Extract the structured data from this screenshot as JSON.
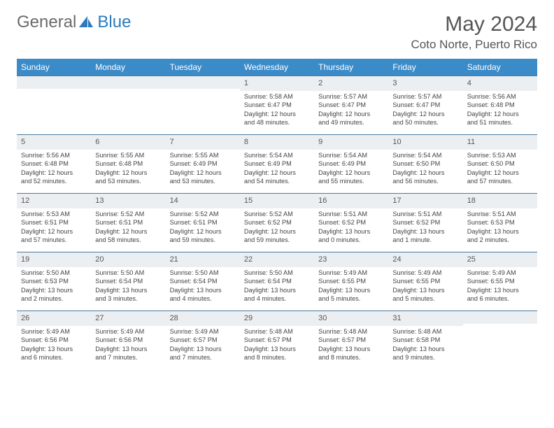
{
  "brand": {
    "general": "General",
    "blue": "Blue"
  },
  "title": "May 2024",
  "location": "Coto Norte, Puerto Rico",
  "colors": {
    "header_bg": "#3b8bc9",
    "daynum_bg": "#eceff1",
    "border": "#4a7a9e",
    "brand_blue": "#2b7bbd",
    "brand_gray": "#6b6b6b"
  },
  "weekdays": [
    "Sunday",
    "Monday",
    "Tuesday",
    "Wednesday",
    "Thursday",
    "Friday",
    "Saturday"
  ],
  "weeks": [
    [
      {
        "n": "",
        "lines": []
      },
      {
        "n": "",
        "lines": []
      },
      {
        "n": "",
        "lines": []
      },
      {
        "n": "1",
        "lines": [
          "Sunrise: 5:58 AM",
          "Sunset: 6:47 PM",
          "Daylight: 12 hours",
          "and 48 minutes."
        ]
      },
      {
        "n": "2",
        "lines": [
          "Sunrise: 5:57 AM",
          "Sunset: 6:47 PM",
          "Daylight: 12 hours",
          "and 49 minutes."
        ]
      },
      {
        "n": "3",
        "lines": [
          "Sunrise: 5:57 AM",
          "Sunset: 6:47 PM",
          "Daylight: 12 hours",
          "and 50 minutes."
        ]
      },
      {
        "n": "4",
        "lines": [
          "Sunrise: 5:56 AM",
          "Sunset: 6:48 PM",
          "Daylight: 12 hours",
          "and 51 minutes."
        ]
      }
    ],
    [
      {
        "n": "5",
        "lines": [
          "Sunrise: 5:56 AM",
          "Sunset: 6:48 PM",
          "Daylight: 12 hours",
          "and 52 minutes."
        ]
      },
      {
        "n": "6",
        "lines": [
          "Sunrise: 5:55 AM",
          "Sunset: 6:48 PM",
          "Daylight: 12 hours",
          "and 53 minutes."
        ]
      },
      {
        "n": "7",
        "lines": [
          "Sunrise: 5:55 AM",
          "Sunset: 6:49 PM",
          "Daylight: 12 hours",
          "and 53 minutes."
        ]
      },
      {
        "n": "8",
        "lines": [
          "Sunrise: 5:54 AM",
          "Sunset: 6:49 PM",
          "Daylight: 12 hours",
          "and 54 minutes."
        ]
      },
      {
        "n": "9",
        "lines": [
          "Sunrise: 5:54 AM",
          "Sunset: 6:49 PM",
          "Daylight: 12 hours",
          "and 55 minutes."
        ]
      },
      {
        "n": "10",
        "lines": [
          "Sunrise: 5:54 AM",
          "Sunset: 6:50 PM",
          "Daylight: 12 hours",
          "and 56 minutes."
        ]
      },
      {
        "n": "11",
        "lines": [
          "Sunrise: 5:53 AM",
          "Sunset: 6:50 PM",
          "Daylight: 12 hours",
          "and 57 minutes."
        ]
      }
    ],
    [
      {
        "n": "12",
        "lines": [
          "Sunrise: 5:53 AM",
          "Sunset: 6:51 PM",
          "Daylight: 12 hours",
          "and 57 minutes."
        ]
      },
      {
        "n": "13",
        "lines": [
          "Sunrise: 5:52 AM",
          "Sunset: 6:51 PM",
          "Daylight: 12 hours",
          "and 58 minutes."
        ]
      },
      {
        "n": "14",
        "lines": [
          "Sunrise: 5:52 AM",
          "Sunset: 6:51 PM",
          "Daylight: 12 hours",
          "and 59 minutes."
        ]
      },
      {
        "n": "15",
        "lines": [
          "Sunrise: 5:52 AM",
          "Sunset: 6:52 PM",
          "Daylight: 12 hours",
          "and 59 minutes."
        ]
      },
      {
        "n": "16",
        "lines": [
          "Sunrise: 5:51 AM",
          "Sunset: 6:52 PM",
          "Daylight: 13 hours",
          "and 0 minutes."
        ]
      },
      {
        "n": "17",
        "lines": [
          "Sunrise: 5:51 AM",
          "Sunset: 6:52 PM",
          "Daylight: 13 hours",
          "and 1 minute."
        ]
      },
      {
        "n": "18",
        "lines": [
          "Sunrise: 5:51 AM",
          "Sunset: 6:53 PM",
          "Daylight: 13 hours",
          "and 2 minutes."
        ]
      }
    ],
    [
      {
        "n": "19",
        "lines": [
          "Sunrise: 5:50 AM",
          "Sunset: 6:53 PM",
          "Daylight: 13 hours",
          "and 2 minutes."
        ]
      },
      {
        "n": "20",
        "lines": [
          "Sunrise: 5:50 AM",
          "Sunset: 6:54 PM",
          "Daylight: 13 hours",
          "and 3 minutes."
        ]
      },
      {
        "n": "21",
        "lines": [
          "Sunrise: 5:50 AM",
          "Sunset: 6:54 PM",
          "Daylight: 13 hours",
          "and 4 minutes."
        ]
      },
      {
        "n": "22",
        "lines": [
          "Sunrise: 5:50 AM",
          "Sunset: 6:54 PM",
          "Daylight: 13 hours",
          "and 4 minutes."
        ]
      },
      {
        "n": "23",
        "lines": [
          "Sunrise: 5:49 AM",
          "Sunset: 6:55 PM",
          "Daylight: 13 hours",
          "and 5 minutes."
        ]
      },
      {
        "n": "24",
        "lines": [
          "Sunrise: 5:49 AM",
          "Sunset: 6:55 PM",
          "Daylight: 13 hours",
          "and 5 minutes."
        ]
      },
      {
        "n": "25",
        "lines": [
          "Sunrise: 5:49 AM",
          "Sunset: 6:55 PM",
          "Daylight: 13 hours",
          "and 6 minutes."
        ]
      }
    ],
    [
      {
        "n": "26",
        "lines": [
          "Sunrise: 5:49 AM",
          "Sunset: 6:56 PM",
          "Daylight: 13 hours",
          "and 6 minutes."
        ]
      },
      {
        "n": "27",
        "lines": [
          "Sunrise: 5:49 AM",
          "Sunset: 6:56 PM",
          "Daylight: 13 hours",
          "and 7 minutes."
        ]
      },
      {
        "n": "28",
        "lines": [
          "Sunrise: 5:49 AM",
          "Sunset: 6:57 PM",
          "Daylight: 13 hours",
          "and 7 minutes."
        ]
      },
      {
        "n": "29",
        "lines": [
          "Sunrise: 5:48 AM",
          "Sunset: 6:57 PM",
          "Daylight: 13 hours",
          "and 8 minutes."
        ]
      },
      {
        "n": "30",
        "lines": [
          "Sunrise: 5:48 AM",
          "Sunset: 6:57 PM",
          "Daylight: 13 hours",
          "and 8 minutes."
        ]
      },
      {
        "n": "31",
        "lines": [
          "Sunrise: 5:48 AM",
          "Sunset: 6:58 PM",
          "Daylight: 13 hours",
          "and 9 minutes."
        ]
      },
      {
        "n": "",
        "lines": []
      }
    ]
  ]
}
